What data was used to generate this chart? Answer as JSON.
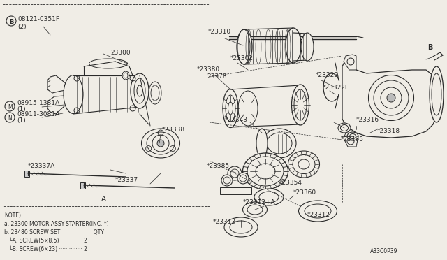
{
  "bg_color": "#f0ede6",
  "line_color": "#2a2a2a",
  "diagram_id": "A33C0P39",
  "note_lines": [
    "NOTE)",
    "a. 23300 MOTOR ASSY-STARTER(INC. *)",
    "b. 23480 SCREW SET                    QTY",
    "   └A. SCREW(5×8.5)·············· 2",
    "   └B. SCREW(6×23) ·············· 2"
  ]
}
